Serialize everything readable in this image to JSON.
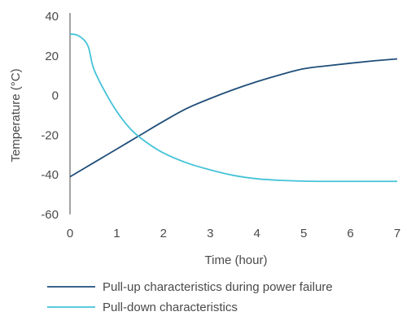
{
  "chart_data": {
    "type": "line",
    "title": "",
    "xlabel": "Time (hour)",
    "ylabel": "Temperature (°C)",
    "xlim": [
      0,
      7
    ],
    "ylim": [
      -60,
      40
    ],
    "x_ticks": [
      0,
      1,
      2,
      3,
      4,
      5,
      6,
      7
    ],
    "y_ticks": [
      40,
      20,
      0,
      -20,
      -40,
      -60
    ],
    "grid": false,
    "legend_position": "bottom",
    "series": [
      {
        "name": "Pull-up characteristics during power failure",
        "color": "#1f4e79",
        "x": [
          0,
          0.5,
          1,
          1.5,
          2,
          2.5,
          3,
          3.5,
          4,
          4.5,
          5,
          5.5,
          6,
          6.5,
          7
        ],
        "y": [
          -41,
          -34,
          -27,
          -20,
          -13,
          -6.5,
          -1.5,
          3,
          7,
          10.5,
          13.5,
          15,
          16.3,
          17.5,
          18.5
        ]
      },
      {
        "name": "Pull-down characteristics",
        "color": "#45c3d8",
        "x": [
          0,
          0.15,
          0.3,
          0.4,
          0.5,
          0.7,
          1,
          1.3,
          1.6,
          2,
          2.5,
          3,
          3.5,
          4,
          4.5,
          5,
          5.5,
          6,
          6.5,
          7
        ],
        "y": [
          31,
          30.5,
          28,
          24,
          14,
          4,
          -8,
          -17,
          -23,
          -29,
          -34,
          -37.5,
          -40.3,
          -42,
          -42.8,
          -43.2,
          -43.3,
          -43.3,
          -43.3,
          -43.3
        ]
      }
    ]
  }
}
